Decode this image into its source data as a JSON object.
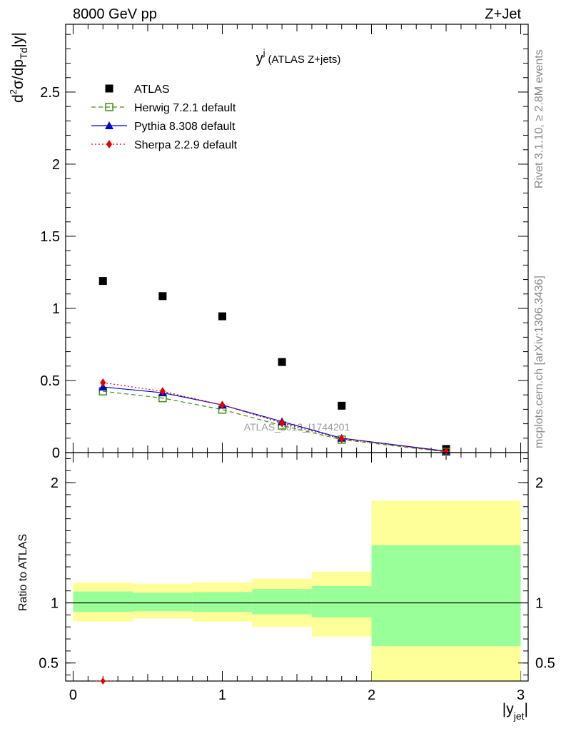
{
  "header": {
    "left": "8000 GeV pp",
    "right": "Z+Jet"
  },
  "side_labels": {
    "rivet": "Rivet 3.1.10, ≥ 2.8M events",
    "mcplots": "mcplots.cern.ch [arXiv:1306.3436]"
  },
  "chart_data": [
    {
      "type": "scatter",
      "title_main": "y",
      "title_sup": "j",
      "title_rest": "(ATLAS Z+jets)",
      "ylabel": "d²σ/dp_Td|y|",
      "ylabel_parts": {
        "d": "d",
        "sup": "2",
        "mid": "σ/dp",
        "sub": "Td",
        "end": "|y|"
      },
      "xlabel": "|y_jet|",
      "xlabel_parts": {
        "main": "|y",
        "sub": "jet",
        "end": "|"
      },
      "xlim": [
        -0.05,
        3.05
      ],
      "ylim": [
        0,
        2.97
      ],
      "yticks": [
        "0",
        "0.5",
        "1",
        "1.5",
        "2",
        "2.5"
      ],
      "watermark": "ATLAS_2013_I1744201",
      "legend_position": "top-left",
      "x": [
        0.2,
        0.6,
        1.0,
        1.4,
        1.8,
        2.5
      ],
      "series": [
        {
          "name": "ATLAS",
          "color": "#000000",
          "marker": "square",
          "values": [
            1.19,
            1.085,
            0.945,
            0.628,
            0.325,
            0.025
          ]
        },
        {
          "name": "Herwig 7.2.1 default",
          "color": "#3d8f12",
          "marker": "open-square",
          "dash": "dashed",
          "values": [
            0.425,
            0.378,
            0.298,
            0.188,
            0.09,
            0.005
          ]
        },
        {
          "name": "Pythia 8.308 default",
          "color": "#0000cc",
          "marker": "triangle",
          "dash": "solid",
          "values": [
            0.455,
            0.415,
            0.33,
            0.215,
            0.1,
            0.01
          ]
        },
        {
          "name": "Sherpa 2.2.9 default",
          "color": "#e00000",
          "marker": "diamond",
          "dash": "dotted",
          "values": [
            0.485,
            0.425,
            0.33,
            0.205,
            0.095,
            0.008
          ]
        }
      ]
    },
    {
      "type": "area",
      "ylabel": "Ratio to ATLAS",
      "xlim": [
        -0.05,
        3.05
      ],
      "ylim": [
        0.35,
        2.25
      ],
      "xticks": [
        "0",
        "1",
        "2",
        "3"
      ],
      "yticks": [
        "0.5",
        "1",
        "2"
      ],
      "reference_line": 1,
      "bands": {
        "bins": [
          [
            0,
            0.4
          ],
          [
            0.4,
            0.8
          ],
          [
            0.8,
            1.2
          ],
          [
            1.2,
            1.6
          ],
          [
            1.6,
            2.0
          ],
          [
            2.0,
            3.0
          ]
        ],
        "stat_color": "#99ff99",
        "total_color": "#ffff99",
        "stat_low": [
          0.925,
          0.93,
          0.925,
          0.905,
          0.88,
          0.64
        ],
        "stat_high": [
          1.095,
          1.085,
          1.09,
          1.115,
          1.14,
          1.48
        ],
        "total_low": [
          0.845,
          0.87,
          0.845,
          0.8,
          0.72,
          0.35
        ],
        "total_high": [
          1.17,
          1.16,
          1.17,
          1.2,
          1.26,
          1.85
        ]
      },
      "offscale_marker": {
        "series": "Sherpa 2.2.9 default",
        "x": 0.2,
        "color": "#e00000"
      }
    }
  ]
}
